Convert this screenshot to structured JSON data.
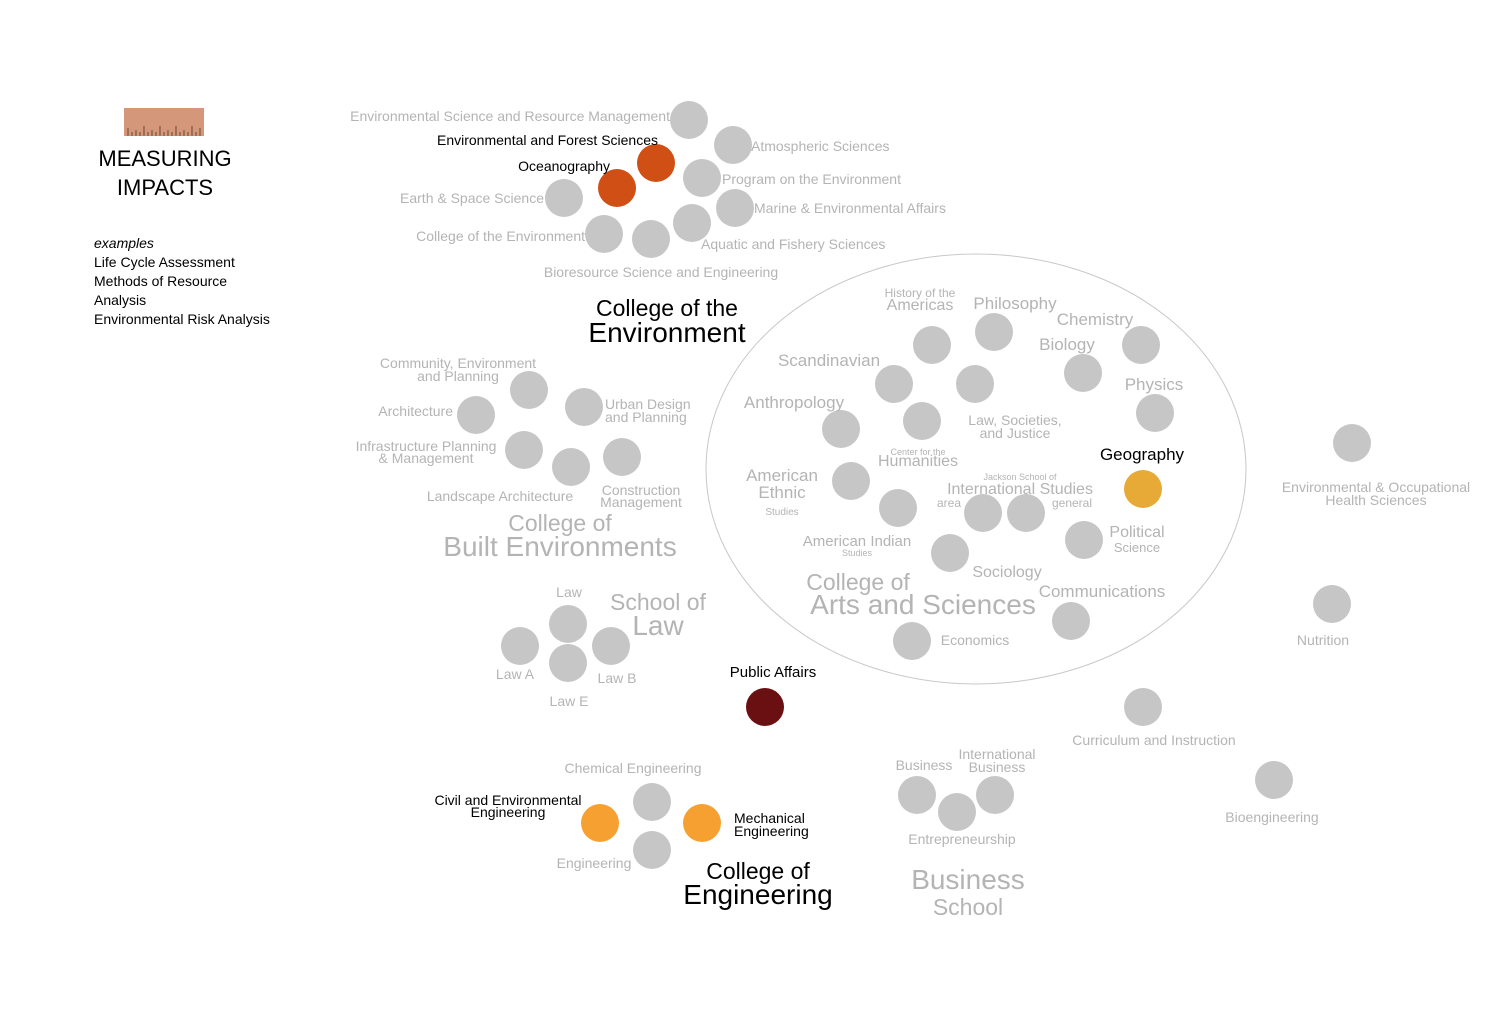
{
  "legend": {
    "title_line1": "MEASURING",
    "title_line2": "IMPACTS",
    "examples_heading": "examples",
    "examples": [
      "Life Cycle Assessment",
      "Methods of Resource Analysis",
      "Environmental Risk Analysis"
    ],
    "ruler_icon": "ruler-icon"
  },
  "colors": {
    "node_gray": "#c6c6c6",
    "label_gray": "#b4b4b4",
    "highlight_dark_orange": "#cf4f14",
    "highlight_orange": "#f5a030",
    "highlight_gold": "#e8aa36",
    "highlight_maroon": "#6a0f12",
    "highlight_label": "#000000"
  },
  "groups": [
    {
      "id": "env",
      "lines": [
        "College of the",
        "Environment"
      ],
      "highlighted": true
    },
    {
      "id": "built",
      "lines": [
        "College of",
        "Built Environments"
      ],
      "highlighted": false
    },
    {
      "id": "law",
      "lines": [
        "School of",
        "Law"
      ],
      "highlighted": false
    },
    {
      "id": "artsci",
      "lines": [
        "College of",
        "Arts and Sciences"
      ],
      "highlighted": false
    },
    {
      "id": "eng",
      "lines": [
        "College of",
        "Engineering"
      ],
      "highlighted": true
    },
    {
      "id": "biz",
      "lines": [
        "Business",
        "School"
      ],
      "highlighted": false
    }
  ],
  "nodes": [
    {
      "label": [
        "Environmental Science and Resource Management"
      ],
      "color": "gray"
    },
    {
      "label": [
        "Environmental and Forest Sciences"
      ],
      "color": "dark_orange"
    },
    {
      "label": [
        "Oceanography"
      ],
      "color": "dark_orange"
    },
    {
      "label": [
        "Atmospheric Sciences"
      ],
      "color": "gray"
    },
    {
      "label": [
        "Program on the Environment"
      ],
      "color": "gray"
    },
    {
      "label": [
        "Earth & Space Science"
      ],
      "color": "gray"
    },
    {
      "label": [
        "Marine & Environmental Affairs"
      ],
      "color": "gray"
    },
    {
      "label": [
        "College of the Environment"
      ],
      "color": "gray"
    },
    {
      "label": [
        "Aquatic and Fishery Sciences"
      ],
      "color": "gray"
    },
    {
      "label": [
        "Bioresource Science and Engineering"
      ],
      "color": "gray"
    },
    {
      "label": [
        "Community, Environment",
        "and Planning"
      ],
      "color": "gray"
    },
    {
      "label": [
        "Architecture"
      ],
      "color": "gray"
    },
    {
      "label": [
        "Urban Design",
        "and Planning"
      ],
      "color": "gray"
    },
    {
      "label": [
        "Infrastructure Planning",
        "& Management"
      ],
      "color": "gray"
    },
    {
      "label": [
        "Construction",
        "Management"
      ],
      "color": "gray"
    },
    {
      "label": [
        "Landscape Architecture"
      ],
      "color": "gray"
    },
    {
      "label": [
        "Law"
      ],
      "color": "gray"
    },
    {
      "label": [
        "Law A"
      ],
      "color": "gray"
    },
    {
      "label": [
        "Law B"
      ],
      "color": "gray"
    },
    {
      "label": [
        "Law E"
      ],
      "color": "gray"
    },
    {
      "label": [
        "Public Affairs"
      ],
      "color": "maroon"
    },
    {
      "label": [
        "History of the",
        "Americas"
      ],
      "color": "gray"
    },
    {
      "label": [
        "Philosophy"
      ],
      "color": "gray"
    },
    {
      "label": [
        "Chemistry"
      ],
      "color": "gray"
    },
    {
      "label": [
        "Biology"
      ],
      "color": "gray"
    },
    {
      "label": [
        "Scandinavian"
      ],
      "color": "gray"
    },
    {
      "label": [
        "Physics"
      ],
      "color": "gray"
    },
    {
      "label": [
        "Anthropology"
      ],
      "color": "gray"
    },
    {
      "label": [
        "Law, Societies,",
        "and Justice"
      ],
      "color": "gray"
    },
    {
      "label": [
        "Center for the",
        "Humanities"
      ],
      "color": "gray"
    },
    {
      "label": [
        "Geography"
      ],
      "color": "gold"
    },
    {
      "label": [
        "American",
        "Ethnic",
        "Studies"
      ],
      "color": "gray"
    },
    {
      "label": [
        "Jackson School of",
        "International Studies"
      ],
      "color": "gray"
    },
    {
      "label": [
        "area"
      ],
      "color": "gray"
    },
    {
      "label": [
        "general"
      ],
      "color": "gray"
    },
    {
      "label": [
        "Political",
        "Science"
      ],
      "color": "gray"
    },
    {
      "label": [
        "American Indian",
        "Studies"
      ],
      "color": "gray"
    },
    {
      "label": [
        "Sociology"
      ],
      "color": "gray"
    },
    {
      "label": [
        "Communications"
      ],
      "color": "gray"
    },
    {
      "label": [
        "Economics"
      ],
      "color": "gray"
    },
    {
      "label": [
        "Environmental & Occupational",
        "Health Sciences"
      ],
      "color": "gray"
    },
    {
      "label": [
        "Nutrition"
      ],
      "color": "gray"
    },
    {
      "label": [
        "Curriculum and Instruction"
      ],
      "color": "gray"
    },
    {
      "label": [
        "Bioengineering"
      ],
      "color": "gray"
    },
    {
      "label": [
        "Business"
      ],
      "color": "gray"
    },
    {
      "label": [
        "International",
        "Business"
      ],
      "color": "gray"
    },
    {
      "label": [
        "Entrepreneurship"
      ],
      "color": "gray"
    },
    {
      "label": [
        "Chemical Engineering"
      ],
      "color": "gray"
    },
    {
      "label": [
        "Civil and Environmental",
        "Engineering"
      ],
      "color": "orange"
    },
    {
      "label": [
        "Mechanical",
        "Engineering"
      ],
      "color": "orange"
    },
    {
      "label": [
        "Engineering"
      ],
      "color": "gray"
    }
  ]
}
